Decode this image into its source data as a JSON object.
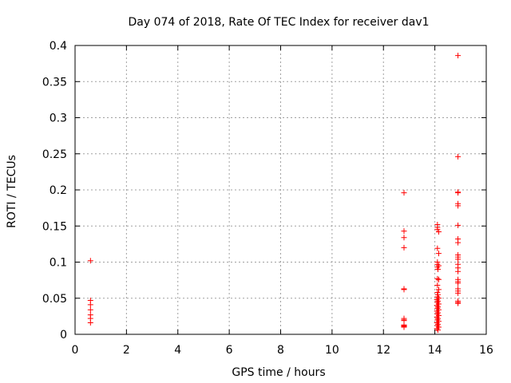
{
  "chart_data": {
    "type": "scatter",
    "title": "Day 074 of 2018, Rate Of TEC Index for receiver dav1",
    "xlabel": "GPS time / hours",
    "ylabel": "ROTI / TECUs",
    "xlim": [
      0,
      16
    ],
    "ylim": [
      0,
      0.4
    ],
    "xticks": [
      0,
      2,
      4,
      6,
      8,
      10,
      12,
      14,
      16
    ],
    "yticks": [
      0,
      0.05,
      0.1,
      0.15,
      0.2,
      0.25,
      0.3,
      0.35,
      0.4
    ],
    "xtick_labels": [
      "0",
      "2",
      "4",
      "6",
      "8",
      "10",
      "12",
      "14",
      "16"
    ],
    "ytick_labels": [
      "0",
      "0.05",
      "0.1",
      "0.15",
      "0.2",
      "0.25",
      "0.3",
      "0.35",
      "0.4"
    ],
    "grid": true,
    "marker": "+",
    "marker_color": "#ff0000",
    "points": [
      [
        0.6,
        0.102
      ],
      [
        0.6,
        0.047
      ],
      [
        0.6,
        0.041
      ],
      [
        0.6,
        0.034
      ],
      [
        0.6,
        0.027
      ],
      [
        0.6,
        0.022
      ],
      [
        0.6,
        0.016
      ],
      [
        12.8,
        0.196
      ],
      [
        12.8,
        0.143
      ],
      [
        12.8,
        0.134
      ],
      [
        12.8,
        0.12
      ],
      [
        12.8,
        0.063
      ],
      [
        12.8,
        0.062
      ],
      [
        12.8,
        0.022
      ],
      [
        12.8,
        0.02
      ],
      [
        12.8,
        0.019
      ],
      [
        12.8,
        0.013
      ],
      [
        12.8,
        0.012
      ],
      [
        12.8,
        0.011
      ],
      [
        12.8,
        0.01
      ],
      [
        14.1,
        0.152
      ],
      [
        14.1,
        0.148
      ],
      [
        14.1,
        0.145
      ],
      [
        14.15,
        0.142
      ],
      [
        14.1,
        0.119
      ],
      [
        14.15,
        0.112
      ],
      [
        14.1,
        0.1
      ],
      [
        14.1,
        0.097
      ],
      [
        14.15,
        0.095
      ],
      [
        14.1,
        0.093
      ],
      [
        14.12,
        0.09
      ],
      [
        14.1,
        0.077
      ],
      [
        14.15,
        0.076
      ],
      [
        14.1,
        0.068
      ],
      [
        14.15,
        0.062
      ],
      [
        14.1,
        0.058
      ],
      [
        14.12,
        0.055
      ],
      [
        14.1,
        0.052
      ],
      [
        14.15,
        0.05
      ],
      [
        14.08,
        0.048
      ],
      [
        14.12,
        0.046
      ],
      [
        14.1,
        0.044
      ],
      [
        14.15,
        0.042
      ],
      [
        14.08,
        0.04
      ],
      [
        14.12,
        0.038
      ],
      [
        14.1,
        0.036
      ],
      [
        14.15,
        0.034
      ],
      [
        14.08,
        0.032
      ],
      [
        14.12,
        0.03
      ],
      [
        14.1,
        0.028
      ],
      [
        14.15,
        0.026
      ],
      [
        14.08,
        0.024
      ],
      [
        14.12,
        0.022
      ],
      [
        14.1,
        0.02
      ],
      [
        14.15,
        0.018
      ],
      [
        14.08,
        0.016
      ],
      [
        14.12,
        0.014
      ],
      [
        14.1,
        0.012
      ],
      [
        14.15,
        0.01
      ],
      [
        14.08,
        0.008
      ],
      [
        14.12,
        0.006
      ],
      [
        14.9,
        0.386
      ],
      [
        14.9,
        0.246
      ],
      [
        14.9,
        0.197
      ],
      [
        14.9,
        0.196
      ],
      [
        14.9,
        0.181
      ],
      [
        14.9,
        0.178
      ],
      [
        14.9,
        0.151
      ],
      [
        14.9,
        0.132
      ],
      [
        14.9,
        0.127
      ],
      [
        14.9,
        0.11
      ],
      [
        14.9,
        0.107
      ],
      [
        14.9,
        0.104
      ],
      [
        14.9,
        0.097
      ],
      [
        14.9,
        0.092
      ],
      [
        14.9,
        0.087
      ],
      [
        14.9,
        0.076
      ],
      [
        14.9,
        0.073
      ],
      [
        14.9,
        0.071
      ],
      [
        14.9,
        0.063
      ],
      [
        14.9,
        0.06
      ],
      [
        14.9,
        0.057
      ],
      [
        14.9,
        0.046
      ],
      [
        14.9,
        0.044
      ],
      [
        14.9,
        0.043
      ]
    ]
  }
}
